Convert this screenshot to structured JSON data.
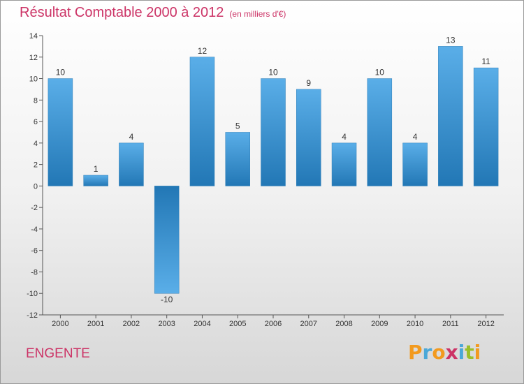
{
  "chart_data": {
    "type": "bar",
    "title": "Résultat Comptable 2000 à 2012",
    "subtitle": "(en milliers d'€)",
    "categories": [
      "2000",
      "2001",
      "2002",
      "2003",
      "2004",
      "2005",
      "2006",
      "2007",
      "2008",
      "2009",
      "2010",
      "2011",
      "2012"
    ],
    "values": [
      10,
      1,
      4,
      -10,
      12,
      5,
      10,
      9,
      4,
      10,
      4,
      13,
      11
    ],
    "ylim": [
      -12,
      14
    ],
    "yticks": [
      14,
      12,
      10,
      8,
      6,
      4,
      2,
      0,
      -2,
      -4,
      -6,
      -8,
      -10,
      -12
    ],
    "xlabel": "",
    "ylabel": "",
    "grid": false,
    "bar_color_top": "#5aaee8",
    "bar_color_bottom": "#2277b5"
  },
  "footer": {
    "commune": "ENGENTE",
    "logo_letters": [
      "P",
      "r",
      "o",
      "x",
      "i",
      "t",
      "i"
    ],
    "logo_colors": [
      "#f29a1f",
      "#4aa8d8",
      "#f29a1f",
      "#cc3366",
      "#4aa8d8",
      "#9bbf2a",
      "#f29a1f"
    ]
  }
}
